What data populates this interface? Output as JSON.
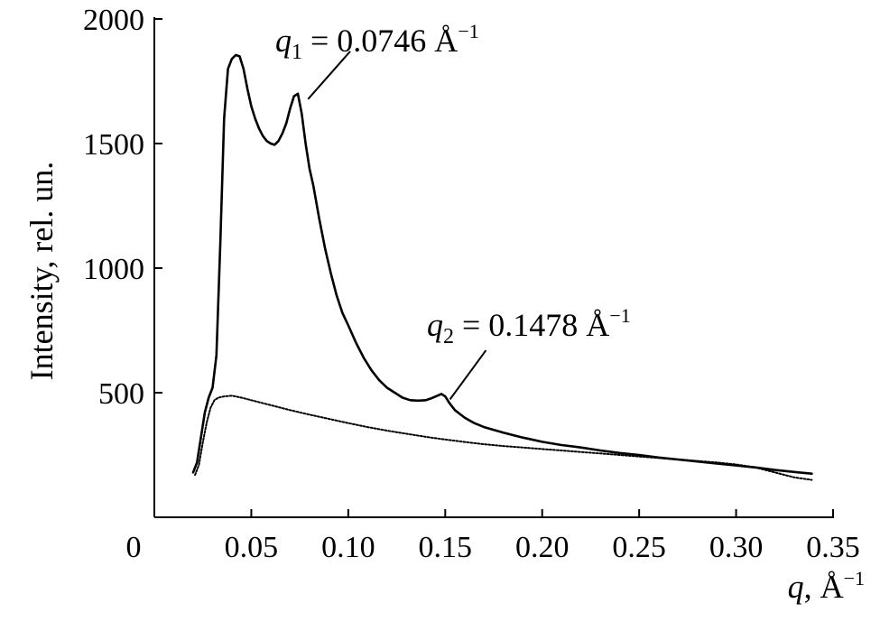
{
  "chart_data": {
    "type": "line",
    "title": "",
    "xlabel_var": "q",
    "xlabel_unit": "Å",
    "xlabel_unit_exp": "−1",
    "ylabel": "Intensity, rel. un.",
    "xlim": [
      0,
      0.35
    ],
    "ylim": [
      0,
      2000
    ],
    "x_ticks": [
      {
        "value": 0.05,
        "label": "0.05"
      },
      {
        "value": 0.1,
        "label": "0.10"
      },
      {
        "value": 0.15,
        "label": "0.15"
      },
      {
        "value": 0.2,
        "label": "0.20"
      },
      {
        "value": 0.25,
        "label": "0.25"
      },
      {
        "value": 0.3,
        "label": "0.30"
      },
      {
        "value": 0.35,
        "label": "0.35"
      }
    ],
    "origin_label": "0",
    "y_ticks": [
      {
        "value": 500,
        "label": "500"
      },
      {
        "value": 1000,
        "label": "1000"
      },
      {
        "value": 1500,
        "label": "1500"
      },
      {
        "value": 2000,
        "label": "2000"
      }
    ],
    "grid": false,
    "series": [
      {
        "style": "solid",
        "color": "#000000",
        "x": [
          0.02,
          0.022,
          0.024,
          0.026,
          0.028,
          0.03,
          0.032,
          0.034,
          0.036,
          0.038,
          0.04,
          0.042,
          0.044,
          0.046,
          0.048,
          0.05,
          0.052,
          0.054,
          0.056,
          0.058,
          0.06,
          0.062,
          0.064,
          0.066,
          0.068,
          0.07,
          0.072,
          0.074,
          0.076,
          0.078,
          0.08,
          0.082,
          0.085,
          0.088,
          0.091,
          0.094,
          0.097,
          0.1,
          0.104,
          0.108,
          0.112,
          0.116,
          0.12,
          0.124,
          0.128,
          0.132,
          0.136,
          0.14,
          0.143,
          0.146,
          0.148,
          0.15,
          0.152,
          0.155,
          0.16,
          0.165,
          0.17,
          0.18,
          0.19,
          0.2,
          0.21,
          0.22,
          0.23,
          0.24,
          0.25,
          0.26,
          0.27,
          0.28,
          0.29,
          0.3,
          0.31,
          0.32,
          0.33,
          0.339
        ],
        "y": [
          180,
          220,
          320,
          420,
          480,
          520,
          650,
          1100,
          1600,
          1800,
          1840,
          1855,
          1850,
          1800,
          1720,
          1650,
          1600,
          1560,
          1530,
          1510,
          1500,
          1495,
          1510,
          1540,
          1580,
          1640,
          1690,
          1700,
          1620,
          1500,
          1400,
          1330,
          1200,
          1080,
          980,
          890,
          820,
          770,
          700,
          640,
          590,
          550,
          520,
          500,
          480,
          470,
          468,
          470,
          478,
          488,
          495,
          485,
          460,
          430,
          400,
          378,
          362,
          340,
          320,
          303,
          290,
          280,
          268,
          258,
          250,
          240,
          232,
          224,
          216,
          208,
          200,
          190,
          182,
          175
        ]
      },
      {
        "style": "dotted",
        "color": "#000000",
        "x": [
          0.021,
          0.023,
          0.025,
          0.027,
          0.029,
          0.031,
          0.033,
          0.036,
          0.04,
          0.045,
          0.05,
          0.06,
          0.07,
          0.08,
          0.09,
          0.1,
          0.11,
          0.12,
          0.13,
          0.14,
          0.15,
          0.16,
          0.17,
          0.18,
          0.19,
          0.2,
          0.21,
          0.22,
          0.23,
          0.24,
          0.25,
          0.26,
          0.27,
          0.28,
          0.29,
          0.3,
          0.31,
          0.32,
          0.33,
          0.339
        ],
        "y": [
          170,
          210,
          300,
          380,
          440,
          470,
          480,
          485,
          488,
          480,
          470,
          450,
          430,
          412,
          395,
          378,
          362,
          348,
          335,
          323,
          312,
          302,
          293,
          286,
          280,
          274,
          268,
          262,
          256,
          250,
          244,
          238,
          232,
          226,
          220,
          212,
          200,
          180,
          160,
          150
        ]
      }
    ],
    "annotations": [
      {
        "var": "q",
        "sub": "1",
        "eq": " = 0.0746 Å",
        "sup": "−1",
        "target": [
          0.0746,
          1700
        ],
        "line_start": [
          0.101,
          1870
        ]
      },
      {
        "var": "q",
        "sub": "2",
        "eq": " = 0.1478 Å",
        "sup": "−1",
        "target": [
          0.1478,
          495
        ],
        "line_start": [
          0.171,
          670
        ]
      }
    ]
  }
}
